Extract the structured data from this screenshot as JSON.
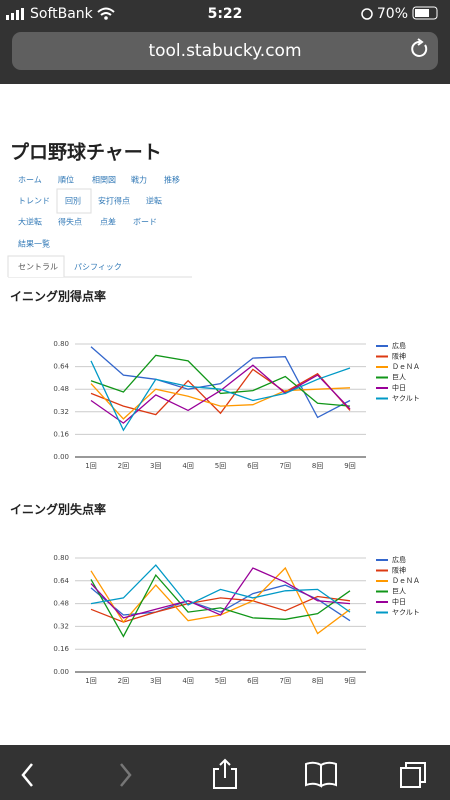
{
  "status_bar": {
    "carrier": "SoftBank",
    "time": "5:22",
    "battery": "70%"
  },
  "url": "tool.stabucky.com",
  "page_title": "プロ野球チャート",
  "nav": [
    [
      "ホーム",
      "順位",
      "相関図",
      "戦力",
      "推移"
    ],
    [
      "トレンド",
      "回別",
      "安打得点",
      "逆転"
    ],
    [
      "大逆転",
      "得失点",
      "点差",
      "ボード"
    ],
    [
      "結果一覧"
    ]
  ],
  "tabs": [
    "セントラル",
    "パシフィック"
  ],
  "chart_data": [
    {
      "type": "line",
      "title": "イニング別得点率",
      "categories": [
        "1回",
        "2回",
        "3回",
        "4回",
        "5回",
        "6回",
        "7回",
        "8回",
        "9回"
      ],
      "ylim": [
        0,
        0.8
      ],
      "yticks": [
        {
          "value": 0,
          "label": "0.00"
        },
        0.16,
        0.32,
        0.48,
        0.64,
        {
          "value": 0.8,
          "label": "0.80"
        }
      ],
      "grid": true,
      "legend": "right",
      "series": [
        {
          "name": "広島",
          "color": "#3366cc",
          "values": [
            0.78,
            0.58,
            0.55,
            0.48,
            0.52,
            0.7,
            0.71,
            0.28,
            0.4
          ]
        },
        {
          "name": "阪神",
          "color": "#dc3912",
          "values": [
            0.45,
            0.36,
            0.3,
            0.54,
            0.31,
            0.62,
            0.46,
            0.59,
            0.33
          ]
        },
        {
          "name": "ＤｅＮＡ",
          "color": "#ff9900",
          "values": [
            0.52,
            0.27,
            0.48,
            0.43,
            0.36,
            0.37,
            0.47,
            0.48,
            0.49
          ]
        },
        {
          "name": "巨人",
          "color": "#109618",
          "values": [
            0.54,
            0.46,
            0.72,
            0.68,
            0.45,
            0.47,
            0.57,
            0.38,
            0.36
          ]
        },
        {
          "name": "中日",
          "color": "#990099",
          "values": [
            0.4,
            0.24,
            0.44,
            0.33,
            0.47,
            0.65,
            0.45,
            0.58,
            0.34
          ]
        },
        {
          "name": "ヤクルト",
          "color": "#0099c6",
          "values": [
            0.68,
            0.19,
            0.55,
            0.5,
            0.48,
            0.4,
            0.45,
            0.55,
            0.63
          ]
        }
      ]
    },
    {
      "type": "line",
      "title": "イニング別失点率",
      "categories": [
        "1回",
        "2回",
        "3回",
        "4回",
        "5回",
        "6回",
        "7回",
        "8回",
        "9回"
      ],
      "ylim": [
        0,
        0.8
      ],
      "yticks": [
        {
          "value": 0,
          "label": "0.00"
        },
        0.16,
        0.32,
        0.48,
        0.64,
        {
          "value": 0.8,
          "label": "0.80"
        }
      ],
      "grid": true,
      "legend": "right",
      "series": [
        {
          "name": "広島",
          "color": "#3366cc",
          "values": [
            0.59,
            0.4,
            0.42,
            0.5,
            0.42,
            0.55,
            0.61,
            0.51,
            0.36
          ]
        },
        {
          "name": "阪神",
          "color": "#dc3912",
          "values": [
            0.44,
            0.35,
            0.42,
            0.48,
            0.52,
            0.5,
            0.43,
            0.53,
            0.5
          ]
        },
        {
          "name": "ＤｅＮＡ",
          "color": "#ff9900",
          "values": [
            0.71,
            0.35,
            0.61,
            0.36,
            0.4,
            0.5,
            0.73,
            0.27,
            0.44
          ]
        },
        {
          "name": "巨人",
          "color": "#109618",
          "values": [
            0.65,
            0.25,
            0.68,
            0.42,
            0.45,
            0.38,
            0.37,
            0.41,
            0.57
          ]
        },
        {
          "name": "中日",
          "color": "#990099",
          "values": [
            0.62,
            0.38,
            0.44,
            0.5,
            0.4,
            0.73,
            0.63,
            0.5,
            0.48
          ]
        },
        {
          "name": "ヤクルト",
          "color": "#0099c6",
          "values": [
            0.48,
            0.52,
            0.75,
            0.47,
            0.58,
            0.52,
            0.57,
            0.58,
            0.42
          ]
        }
      ]
    }
  ]
}
